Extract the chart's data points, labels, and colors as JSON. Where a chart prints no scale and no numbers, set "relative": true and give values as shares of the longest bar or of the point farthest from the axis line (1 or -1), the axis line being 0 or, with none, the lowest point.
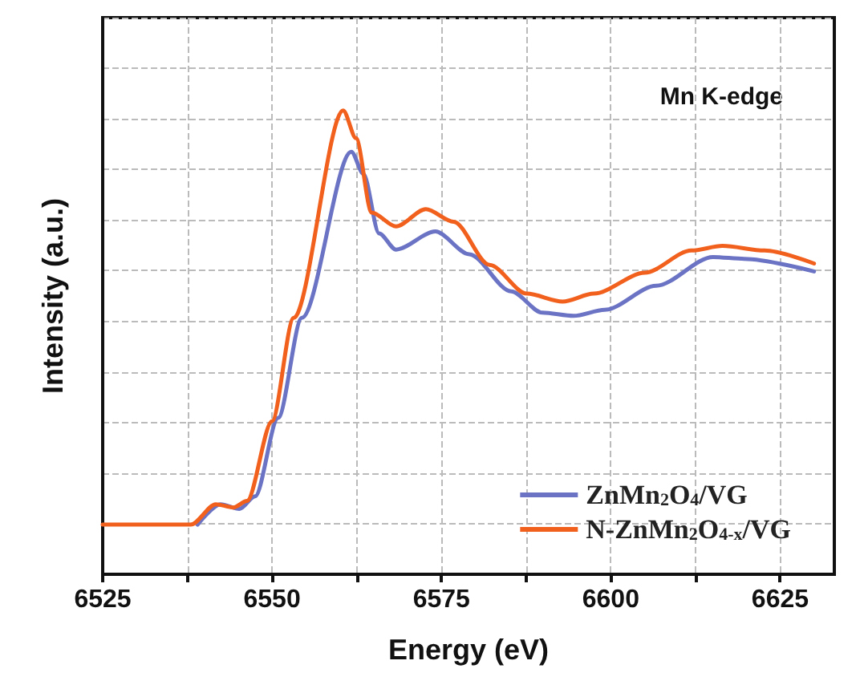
{
  "chart_data": {
    "type": "line",
    "relative": true,
    "xlabel": "Energy (eV)",
    "ylabel": "Intensity (a.u.)",
    "xlim": [
      6525,
      6633
    ],
    "xticks": [
      6525,
      {
        "value": 6537.5,
        "label": null
      },
      6550,
      {
        "value": 6562.5,
        "label": null
      },
      6575,
      {
        "value": 6587.5,
        "label": null
      },
      6600,
      {
        "value": 6612.5,
        "label": null
      },
      6625
    ],
    "grid": true,
    "legend": "bottom right",
    "marker": "none",
    "line_style": "solid",
    "annotations": [
      "Mn K-edge"
    ],
    "series": [
      {
        "name": "ZnMn$_{2}$O$_{4}$/VG",
        "color": "#6b73c4",
        "x": [
          6539,
          6542.4,
          6545.2,
          6547.5,
          6550.9,
          6554.4,
          6561.7,
          6563.5,
          6565.8,
          6568.3,
          6574.1,
          6579.1,
          6585.3,
          6589.9,
          6594.5,
          6599.1,
          6606.7,
          6615.1,
          6619.7,
          6630
        ],
        "values": [
          0.107,
          0.151,
          0.141,
          0.168,
          0.337,
          0.553,
          0.911,
          0.863,
          0.735,
          0.7,
          0.739,
          0.69,
          0.61,
          0.564,
          0.557,
          0.57,
          0.622,
          0.684,
          0.68,
          0.653
        ]
      },
      {
        "name": "N-ZnMn$_{2}$O$_{4-x}$/VG",
        "color": "#f2601e",
        "x": [
          6525,
          6538,
          6541.7,
          6544.3,
          6546.3,
          6550,
          6553.2,
          6560.5,
          6562.4,
          6564.7,
          6568.3,
          6572.7,
          6576.8,
          6582.1,
          6587.6,
          6592.9,
          6597.5,
          6605,
          6611.9,
          6616.5,
          6622.7,
          6630
        ],
        "values": [
          0.107,
          0.107,
          0.151,
          0.144,
          0.158,
          0.33,
          0.553,
          1.0,
          0.94,
          0.78,
          0.75,
          0.787,
          0.76,
          0.667,
          0.605,
          0.588,
          0.605,
          0.65,
          0.698,
          0.708,
          0.698,
          0.67
        ]
      }
    ]
  }
}
